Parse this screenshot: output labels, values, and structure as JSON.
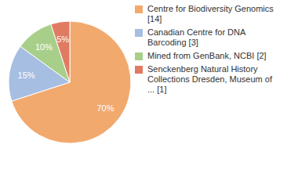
{
  "chart_data": {
    "type": "pie",
    "categories": [
      "Centre for Biodiversity Genomics [14]",
      "Canadian Centre for DNA Barcoding [3]",
      "Mined from GenBank, NCBI [2]",
      "Senckenberg Natural History Collections Dresden, Museum of ... [1]"
    ],
    "values": [
      70,
      15,
      10,
      5
    ],
    "value_labels": [
      "70%",
      "15%",
      "10%",
      "5%"
    ],
    "colors": [
      "#f2a96e",
      "#a6bee2",
      "#a8cf8a",
      "#e07b62"
    ],
    "data_labels": true,
    "legend": "right"
  }
}
